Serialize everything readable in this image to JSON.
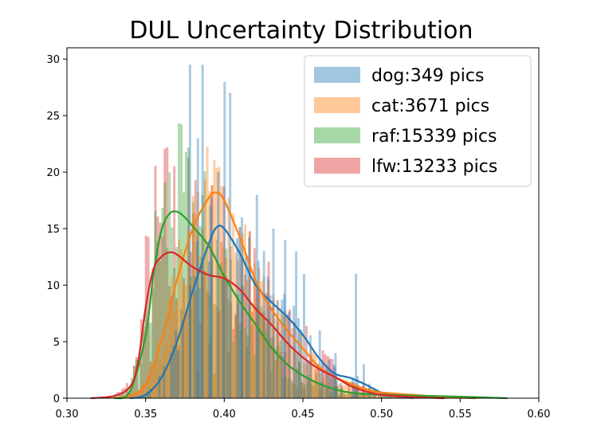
{
  "chart_data": {
    "type": "histogram",
    "title": "DUL Uncertainty Distribution",
    "xlabel": "",
    "ylabel": "",
    "xlim": [
      0.3,
      0.6
    ],
    "ylim": [
      0,
      31
    ],
    "xticks": [
      "0.30",
      "0.35",
      "0.40",
      "0.45",
      "0.50",
      "0.55",
      "0.60"
    ],
    "yticks": [
      "0",
      "5",
      "10",
      "15",
      "20",
      "25",
      "30"
    ],
    "grid": false,
    "legend": "top-right",
    "series": [
      {
        "name": "dog:349 pics",
        "color": "#1f77b4",
        "kde": [
          [
            0.34,
            0
          ],
          [
            0.35,
            0.3
          ],
          [
            0.36,
            1.8
          ],
          [
            0.37,
            5.0
          ],
          [
            0.38,
            9.5
          ],
          [
            0.39,
            13.6
          ],
          [
            0.395,
            15.1
          ],
          [
            0.4,
            15.0
          ],
          [
            0.41,
            12.8
          ],
          [
            0.42,
            10.0
          ],
          [
            0.43,
            8.5
          ],
          [
            0.44,
            7.2
          ],
          [
            0.45,
            5.6
          ],
          [
            0.46,
            3.6
          ],
          [
            0.47,
            2.2
          ],
          [
            0.48,
            1.8
          ],
          [
            0.49,
            1.2
          ],
          [
            0.5,
            0.5
          ],
          [
            0.51,
            0.2
          ],
          [
            0.52,
            0
          ]
        ],
        "spikes": [
          [
            0.3775,
            29.5
          ],
          [
            0.3825,
            23
          ],
          [
            0.3855,
            29.5
          ],
          [
            0.3905,
            17
          ],
          [
            0.3955,
            20
          ],
          [
            0.3995,
            28
          ],
          [
            0.403,
            27
          ],
          [
            0.4105,
            16
          ],
          [
            0.42,
            18
          ],
          [
            0.4245,
            13
          ],
          [
            0.4305,
            15
          ],
          [
            0.438,
            14
          ],
          [
            0.445,
            13
          ],
          [
            0.45,
            11
          ],
          [
            0.46,
            6
          ],
          [
            0.47,
            4
          ],
          [
            0.483,
            11
          ],
          [
            0.488,
            3
          ]
        ]
      },
      {
        "name": "cat:3671 pics",
        "color": "#ff7f0e",
        "kde": [
          [
            0.33,
            0
          ],
          [
            0.34,
            0.2
          ],
          [
            0.35,
            1.2
          ],
          [
            0.36,
            5.0
          ],
          [
            0.37,
            10.5
          ],
          [
            0.38,
            15.0
          ],
          [
            0.39,
            17.7
          ],
          [
            0.395,
            18.2
          ],
          [
            0.4,
            17.5
          ],
          [
            0.41,
            14.2
          ],
          [
            0.42,
            10.4
          ],
          [
            0.43,
            7.9
          ],
          [
            0.44,
            6.0
          ],
          [
            0.45,
            4.4
          ],
          [
            0.46,
            2.8
          ],
          [
            0.47,
            1.9
          ],
          [
            0.48,
            1.3
          ],
          [
            0.49,
            0.8
          ],
          [
            0.5,
            0.5
          ],
          [
            0.52,
            0.3
          ],
          [
            0.54,
            0.1
          ],
          [
            0.56,
            0
          ]
        ]
      },
      {
        "name": "raf:15339 pics",
        "color": "#2ca02c",
        "kde": [
          [
            0.33,
            0
          ],
          [
            0.34,
            0.6
          ],
          [
            0.35,
            5.5
          ],
          [
            0.355,
            11.0
          ],
          [
            0.36,
            14.8
          ],
          [
            0.365,
            16.3
          ],
          [
            0.37,
            16.5
          ],
          [
            0.375,
            16.0
          ],
          [
            0.38,
            15.2
          ],
          [
            0.39,
            13.5
          ],
          [
            0.4,
            10.8
          ],
          [
            0.41,
            8.5
          ],
          [
            0.42,
            6.5
          ],
          [
            0.43,
            4.5
          ],
          [
            0.44,
            3.0
          ],
          [
            0.45,
            2.0
          ],
          [
            0.46,
            1.3
          ],
          [
            0.47,
            0.8
          ],
          [
            0.48,
            0.5
          ],
          [
            0.5,
            0.3
          ],
          [
            0.53,
            0.2
          ],
          [
            0.56,
            0.1
          ],
          [
            0.58,
            0
          ]
        ]
      },
      {
        "name": "lfw:13233 pics",
        "color": "#d62728",
        "kde": [
          [
            0.315,
            0
          ],
          [
            0.33,
            0.2
          ],
          [
            0.34,
            1.0
          ],
          [
            0.345,
            3.0
          ],
          [
            0.35,
            8.0
          ],
          [
            0.355,
            11.4
          ],
          [
            0.36,
            12.5
          ],
          [
            0.365,
            12.9
          ],
          [
            0.37,
            12.7
          ],
          [
            0.38,
            11.6
          ],
          [
            0.39,
            10.9
          ],
          [
            0.4,
            10.6
          ],
          [
            0.41,
            9.6
          ],
          [
            0.42,
            7.9
          ],
          [
            0.43,
            6.5
          ],
          [
            0.44,
            4.9
          ],
          [
            0.45,
            3.6
          ],
          [
            0.46,
            2.6
          ],
          [
            0.47,
            1.9
          ],
          [
            0.48,
            1.1
          ],
          [
            0.49,
            0.6
          ],
          [
            0.5,
            0.3
          ],
          [
            0.52,
            0.1
          ],
          [
            0.54,
            0
          ]
        ]
      }
    ]
  }
}
